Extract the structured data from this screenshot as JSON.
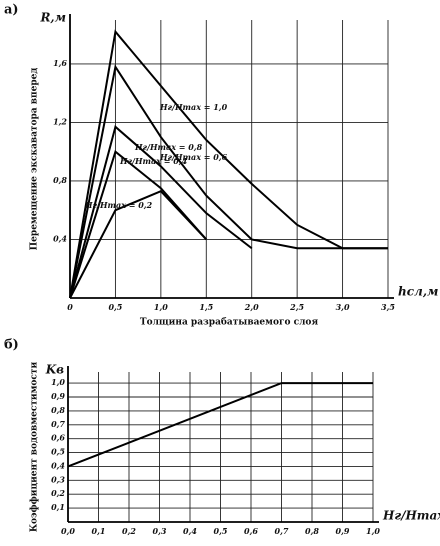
{
  "chart_data": [
    {
      "type": "line",
      "panel": "а)",
      "ylabel": "Перемещение экскаватора вперед",
      "xlabel": "Толщина разрабатываемого слоя",
      "y_unit": "R,м",
      "x_unit": "hсл,м",
      "x": [
        0,
        0.5,
        1.0,
        1.5,
        2.0,
        2.5,
        3.0,
        3.5
      ],
      "series": [
        {
          "name": "Hг/Hmax = 1,0",
          "color": "#000000",
          "values": [
            0,
            1.82,
            1.45,
            1.08,
            0.78,
            0.5,
            0.34,
            0.34
          ]
        },
        {
          "name": "Hг/Hmax = 0,8",
          "color": "#000000",
          "values": [
            0,
            1.58,
            1.1,
            0.7,
            0.4,
            0.34,
            0.34,
            0.34
          ]
        },
        {
          "name": "Hг/Hmax = 0,6",
          "color": "#000000",
          "values": [
            0,
            1.17,
            0.9,
            0.58,
            0.34,
            null,
            null,
            null
          ]
        },
        {
          "name": "Hг/Hmax = 0,4",
          "color": "#000000",
          "values": [
            0,
            1.0,
            0.75,
            0.4,
            null,
            null,
            null,
            null
          ]
        },
        {
          "name": "Hг/Hmax = 0,2",
          "color": "#000000",
          "values": [
            0,
            0.6,
            0.73,
            0.4,
            null,
            null,
            null,
            null
          ]
        }
      ],
      "xlim": [
        0,
        3.5
      ],
      "xticks": [
        0,
        {
          "value": 0.5,
          "label": "0,5"
        },
        {
          "value": 1.0,
          "label": "1,0"
        },
        {
          "value": 1.5,
          "label": "1,5"
        },
        {
          "value": 2.0,
          "label": "2,0"
        },
        {
          "value": 2.5,
          "label": "2,5"
        },
        {
          "value": 3.0,
          "label": "3,0"
        },
        {
          "value": 3.5,
          "label": "3,5"
        }
      ],
      "ylim": [
        0,
        1.9
      ],
      "yticks": [
        {
          "value": 0.4,
          "label": "0,4"
        },
        {
          "value": 0.8,
          "label": "0,8"
        },
        {
          "value": 1.2,
          "label": "1,2"
        },
        {
          "value": 1.6,
          "label": "1,6"
        }
      ],
      "grid": true
    },
    {
      "type": "line",
      "panel": "б)",
      "ylabel": "Коэффициент водовместимости",
      "y_unit": "Kв",
      "x_unit": "Hг/Hmax",
      "x": [
        0,
        0.7,
        1.0
      ],
      "series": [
        {
          "name": "Kв",
          "color": "#000000",
          "values": [
            0.4,
            1.0,
            1.0
          ]
        }
      ],
      "xlim": [
        0,
        1.0
      ],
      "xticks": [
        {
          "value": 0,
          "label": "0,0"
        },
        {
          "value": 0.1,
          "label": "0,1"
        },
        {
          "value": 0.2,
          "label": "0,2"
        },
        {
          "value": 0.3,
          "label": "0,3"
        },
        {
          "value": 0.4,
          "label": "0,4"
        },
        {
          "value": 0.5,
          "label": "0,5"
        },
        {
          "value": 0.6,
          "label": "0,6"
        },
        {
          "value": 0.7,
          "label": "0,7"
        },
        {
          "value": 0.8,
          "label": "0,8"
        },
        {
          "value": 0.9,
          "label": "0,9"
        },
        {
          "value": 1.0,
          "label": "1,0"
        }
      ],
      "ylim": [
        0,
        1.08
      ],
      "yticks": [
        {
          "value": 0.1,
          "label": "0,1"
        },
        {
          "value": 0.2,
          "label": "0,2"
        },
        {
          "value": 0.3,
          "label": "0,3"
        },
        {
          "value": 0.4,
          "label": "0,4"
        },
        {
          "value": 0.5,
          "label": "0,5"
        },
        {
          "value": 0.6,
          "label": "0,6"
        },
        {
          "value": 0.7,
          "label": "0,7"
        },
        {
          "value": 0.8,
          "label": "0,8"
        },
        {
          "value": 0.9,
          "label": "0,9"
        },
        {
          "value": 1.0,
          "label": "1,0"
        }
      ],
      "grid": true
    }
  ]
}
